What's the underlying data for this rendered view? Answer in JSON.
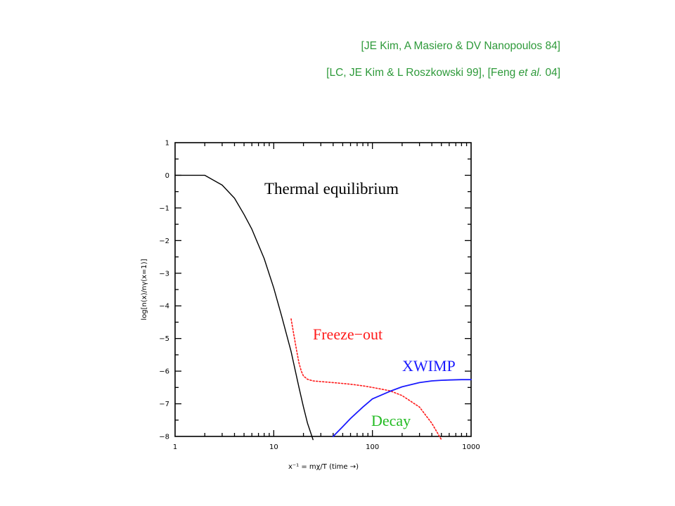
{
  "citations": [
    {
      "text": "[JE Kim, A Masiero & DV Nanopoulos 84]"
    },
    {
      "pre": "[LC, JE Kim & L Roszkowski 99], [Feng ",
      "em": "et al.",
      "post": " 04]"
    }
  ],
  "colors": {
    "citation": "#2e9a3a",
    "equilibrium": "#000000",
    "freeze_out": "#ff1a1a",
    "xwimp": "#1a1aff",
    "decay_label": "#22bb22"
  },
  "chart_data": {
    "type": "line",
    "xscale": "log",
    "xlim": [
      1,
      1000
    ],
    "ylim": [
      -8,
      1
    ],
    "xticks": [
      "1",
      "10",
      "100",
      "1000"
    ],
    "yticks": [
      "1",
      "0",
      "−1",
      "−2",
      "−3",
      "−4",
      "−5",
      "−6",
      "−7",
      "−8"
    ],
    "xlabel": "x⁻¹ = mχ/T    (time →)",
    "ylabel": "log[n(x)/nγ(x=1)]",
    "annotations": [
      {
        "text": "Thermal equilibrium",
        "color": "#000000"
      },
      {
        "text": "Freeze−out",
        "color": "#ff1a1a"
      },
      {
        "text": "XWIMP",
        "color": "#1a1aff"
      },
      {
        "text": "Decay",
        "color": "#22bb22"
      }
    ],
    "series": [
      {
        "style": "solid",
        "color": "#000000",
        "x": [
          1,
          2,
          3,
          4,
          5,
          6,
          8,
          10,
          12,
          15,
          18,
          20,
          22,
          25
        ],
        "y": [
          0,
          0,
          -0.3,
          -0.7,
          -1.2,
          -1.65,
          -2.55,
          -3.45,
          -4.3,
          -5.4,
          -6.5,
          -7.1,
          -7.6,
          -8.1
        ]
      },
      {
        "style": "dotted",
        "color": "#ff1a1a",
        "x": [
          15,
          16,
          17,
          18,
          19,
          20,
          22,
          25,
          30,
          40,
          60,
          80,
          100,
          150,
          200,
          300,
          400,
          500
        ],
        "y": [
          -4.4,
          -4.9,
          -5.35,
          -5.75,
          -6.0,
          -6.15,
          -6.25,
          -6.3,
          -6.32,
          -6.35,
          -6.4,
          -6.45,
          -6.5,
          -6.6,
          -6.75,
          -7.1,
          -7.6,
          -8.1
        ]
      },
      {
        "style": "solid",
        "color": "#1a1aff",
        "x": [
          40,
          50,
          60,
          80,
          100,
          150,
          200,
          300,
          400,
          500,
          600,
          800,
          1000
        ],
        "y": [
          -8,
          -7.7,
          -7.45,
          -7.1,
          -6.85,
          -6.62,
          -6.48,
          -6.35,
          -6.3,
          -6.28,
          -6.27,
          -6.26,
          -6.26
        ]
      }
    ]
  }
}
